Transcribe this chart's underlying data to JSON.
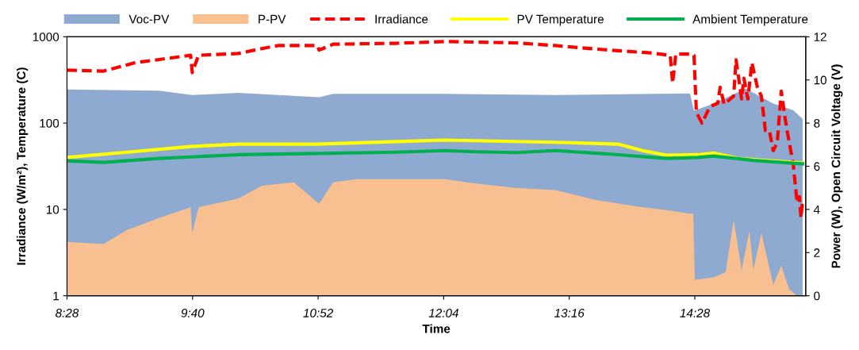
{
  "chart_data": {
    "type": "line",
    "xlabel": "Time",
    "ylabel": "Irradiance (W/m²), Temperature (C)",
    "y2label": "Power (W), Open Circuit Voltage (V)",
    "xlim": [
      8.467,
      15.527
    ],
    "xticks": [
      {
        "value": 8.467,
        "label": "8:28"
      },
      {
        "value": 9.667,
        "label": "9:40"
      },
      {
        "value": 10.867,
        "label": "10:52"
      },
      {
        "value": 12.067,
        "label": "12:04"
      },
      {
        "value": 13.267,
        "label": "13:16"
      },
      {
        "value": 14.467,
        "label": "14:28"
      }
    ],
    "ylim": [
      1,
      1000
    ],
    "yticks": [
      1,
      10,
      100,
      1000
    ],
    "y2lim": [
      0,
      12
    ],
    "y2ticks": [
      0,
      2,
      4,
      6,
      8,
      10,
      12
    ],
    "log": "y",
    "grid": false,
    "legend": "top",
    "series": [
      {
        "name": "Voc-PV",
        "type": "area",
        "axis": "y2",
        "color": "#8eaad0",
        "x": [
          8.467,
          9.345,
          9.664,
          10.103,
          10.876,
          11.012,
          12.073,
          13.133,
          14.421,
          14.459,
          14.648,
          14.952,
          15.217,
          15.406,
          15.497
        ],
        "values": [
          9.56,
          9.5,
          9.3,
          9.4,
          9.2,
          9.35,
          9.35,
          9.3,
          9.37,
          8.57,
          8.9,
          9.6,
          8.9,
          8.6,
          8.2
        ]
      },
      {
        "name": "P-PV",
        "type": "area",
        "axis": "y2",
        "color": "#f8c090",
        "x": [
          8.467,
          8.815,
          9.042,
          9.345,
          9.648,
          9.664,
          9.724,
          10.103,
          10.33,
          10.634,
          10.876,
          11.012,
          11.24,
          11.618,
          12.073,
          12.376,
          12.755,
          13.133,
          13.512,
          13.891,
          14.194,
          14.421,
          14.452,
          14.467,
          14.648,
          14.762,
          14.838,
          14.914,
          14.989,
          15.027,
          15.103,
          15.217,
          15.293,
          15.368,
          15.444
        ],
        "values": [
          2.5,
          2.4,
          3.05,
          3.6,
          4.1,
          2.9,
          4.1,
          4.5,
          5.1,
          5.25,
          4.26,
          5.26,
          5.4,
          5.4,
          5.4,
          5.2,
          5.0,
          4.9,
          4.45,
          4.15,
          3.97,
          3.8,
          3.8,
          0.74,
          0.85,
          1.1,
          3.5,
          1.2,
          3.0,
          1.2,
          2.9,
          0.5,
          1.4,
          0.3,
          0
        ]
      },
      {
        "name": "Irradiance",
        "axis": "y",
        "color": "#ff0000",
        "line_style": "dashed",
        "x": [
          8.467,
          8.815,
          9.118,
          9.648,
          9.664,
          9.724,
          10.103,
          10.33,
          10.482,
          10.861,
          10.876,
          11.012,
          11.618,
          12.073,
          12.755,
          13.133,
          13.588,
          14.042,
          14.232,
          14.255,
          14.285,
          14.421,
          14.459,
          14.482,
          14.535,
          14.611,
          14.686,
          14.709,
          14.747,
          14.838,
          14.861,
          14.914,
          14.936,
          14.974,
          15.012,
          15.065,
          15.103,
          15.141,
          15.179,
          15.217,
          15.255,
          15.293,
          15.33,
          15.368,
          15.406,
          15.444,
          15.467,
          15.482,
          15.497
        ],
        "values": [
          410,
          400,
          500,
          610,
          385,
          610,
          640,
          730,
          790,
          790,
          700,
          820,
          840,
          880,
          850,
          790,
          710,
          650,
          610,
          290,
          630,
          630,
          610,
          133,
          100,
          155,
          170,
          260,
          165,
          205,
          540,
          190,
          330,
          190,
          500,
          260,
          205,
          82,
          82,
          48,
          60,
          235,
          113,
          60,
          35,
          12,
          14,
          8,
          13
        ]
      },
      {
        "name": "PV Temperature",
        "axis": "y",
        "color": "#ffff00",
        "x": [
          8.467,
          9.042,
          9.648,
          10.103,
          10.861,
          11.618,
          12.073,
          13.133,
          13.74,
          13.967,
          14.194,
          14.497,
          14.648,
          14.876,
          15.497
        ],
        "values": [
          40,
          46,
          53.5,
          57,
          57,
          61,
          63.6,
          60,
          57,
          48,
          42.5,
          43,
          45,
          39,
          34.4
        ]
      },
      {
        "name": "Ambient Temperature",
        "axis": "y",
        "color": "#00b050",
        "x": [
          8.467,
          8.815,
          9.345,
          10.103,
          10.861,
          11.618,
          12.073,
          12.376,
          12.755,
          13.133,
          13.74,
          14.194,
          14.497,
          14.648,
          15.027,
          15.497
        ],
        "values": [
          36.6,
          35,
          39,
          43,
          44.5,
          46,
          48,
          46.5,
          45.5,
          48,
          43,
          39,
          40,
          41.5,
          37,
          33.7
        ]
      }
    ]
  }
}
